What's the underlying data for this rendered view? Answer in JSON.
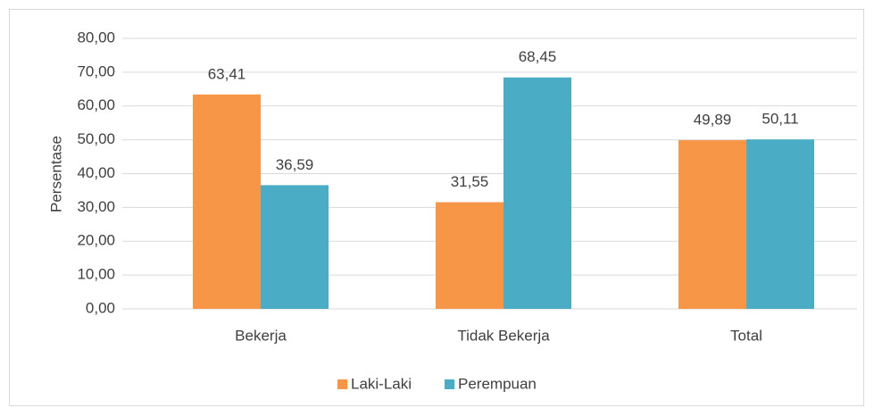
{
  "chart_data": {
    "type": "bar",
    "y_label": "Persentase",
    "categories": [
      "Bekerja",
      "Tidak Bekerja",
      "Total"
    ],
    "series": [
      {
        "name": "Laki-Laki",
        "color": "#F79646",
        "values": [
          63.41,
          31.55,
          49.89
        ],
        "value_labels": [
          "63,41",
          "31,55",
          "49,89"
        ]
      },
      {
        "name": "Perempuan",
        "color": "#4BACC6",
        "values": [
          36.59,
          68.45,
          50.11
        ],
        "value_labels": [
          "36,59",
          "68,45",
          "50,11"
        ]
      }
    ],
    "ylim": [
      0,
      80
    ],
    "yticks": [
      {
        "value": 0,
        "label": "0,00"
      },
      {
        "value": 10,
        "label": "10,00"
      },
      {
        "value": 20,
        "label": "20,00"
      },
      {
        "value": 30,
        "label": "30,00"
      },
      {
        "value": 40,
        "label": "40,00"
      },
      {
        "value": 50,
        "label": "50,00"
      },
      {
        "value": 60,
        "label": "60,00"
      },
      {
        "value": 70,
        "label": "70,00"
      },
      {
        "value": 80,
        "label": "80,00"
      }
    ],
    "grid": true,
    "legend": "bottom"
  }
}
